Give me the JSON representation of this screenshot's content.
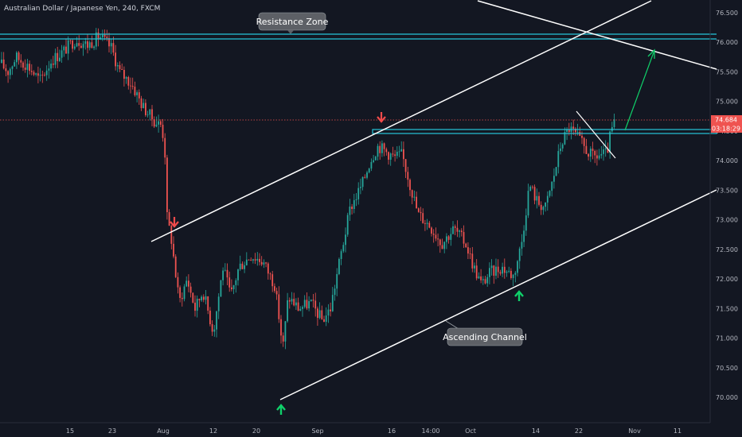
{
  "symbol_title": "Australian Dollar / Japanese Yen, 240, FXCM",
  "price_tag": "74.684",
  "countdown_tag": "03:18:29",
  "annotations": {
    "resistance": "Resistance Zone",
    "channel": "Ascending Channel"
  },
  "colors": {
    "background": "#131722",
    "up": "#26a69a",
    "down": "#ef5350",
    "zone": "#26c6da",
    "line": "#ffffff",
    "label_bg": "#5d6066",
    "arrow_up": "#0fd16a",
    "arrow_down": "#f24b4b",
    "axis_text": "#b2b5be"
  },
  "chart_data": {
    "type": "candlestick",
    "title": "Australian Dollar / Japanese Yen, 240, FXCM",
    "ylim": [
      69.6,
      76.6
    ],
    "y_ticks": [
      "76.500",
      "76.000",
      "75.500",
      "75.000",
      "74.500",
      "74.000",
      "73.500",
      "73.000",
      "72.500",
      "72.000",
      "71.500",
      "71.000",
      "70.500",
      "70.000"
    ],
    "x_ticks": [
      "15",
      "23",
      "Aug",
      "12",
      "20",
      "Sep",
      "16",
      "14:00",
      "Oct",
      "14",
      "22",
      "Nov",
      "11"
    ],
    "last_price": 74.684,
    "price_path": [
      [
        0,
        75.65
      ],
      [
        10,
        75.5
      ],
      [
        20,
        75.75
      ],
      [
        35,
        75.6
      ],
      [
        50,
        75.35
      ],
      [
        65,
        75.7
      ],
      [
        80,
        75.85
      ],
      [
        95,
        76.05
      ],
      [
        110,
        75.95
      ],
      [
        125,
        76.1
      ],
      [
        140,
        75.9
      ],
      [
        150,
        75.5
      ],
      [
        165,
        75.3
      ],
      [
        180,
        74.9
      ],
      [
        195,
        74.65
      ],
      [
        203,
        74.6
      ],
      [
        207,
        74.2
      ],
      [
        210,
        73.0
      ],
      [
        215,
        72.7
      ],
      [
        225,
        71.6
      ],
      [
        235,
        72.0
      ],
      [
        245,
        71.5
      ],
      [
        255,
        71.8
      ],
      [
        268,
        71.1
      ],
      [
        280,
        72.2
      ],
      [
        290,
        71.7
      ],
      [
        300,
        72.2
      ],
      [
        315,
        72.4
      ],
      [
        330,
        72.3
      ],
      [
        345,
        71.9
      ],
      [
        352,
        71.2
      ],
      [
        355,
        70.8
      ],
      [
        362,
        71.7
      ],
      [
        375,
        71.5
      ],
      [
        390,
        71.6
      ],
      [
        405,
        71.3
      ],
      [
        415,
        71.5
      ],
      [
        425,
        72.2
      ],
      [
        440,
        73.2
      ],
      [
        455,
        73.6
      ],
      [
        465,
        74.0
      ],
      [
        475,
        74.25
      ],
      [
        485,
        74.15
      ],
      [
        495,
        74.05
      ],
      [
        505,
        74.1
      ],
      [
        515,
        73.6
      ],
      [
        525,
        73.1
      ],
      [
        540,
        72.9
      ],
      [
        555,
        72.6
      ],
      [
        570,
        72.85
      ],
      [
        585,
        72.6
      ],
      [
        595,
        72.2
      ],
      [
        605,
        71.9
      ],
      [
        615,
        72.1
      ],
      [
        630,
        72.2
      ],
      [
        645,
        72.05
      ],
      [
        655,
        72.6
      ],
      [
        665,
        73.6
      ],
      [
        675,
        73.3
      ],
      [
        685,
        73.2
      ],
      [
        695,
        73.7
      ],
      [
        705,
        74.3
      ],
      [
        715,
        74.55
      ],
      [
        725,
        74.4
      ],
      [
        735,
        74.2
      ],
      [
        745,
        74.05
      ],
      [
        755,
        74.1
      ],
      [
        762,
        74.1
      ],
      [
        767,
        74.45
      ],
      [
        773,
        74.68
      ]
    ]
  }
}
